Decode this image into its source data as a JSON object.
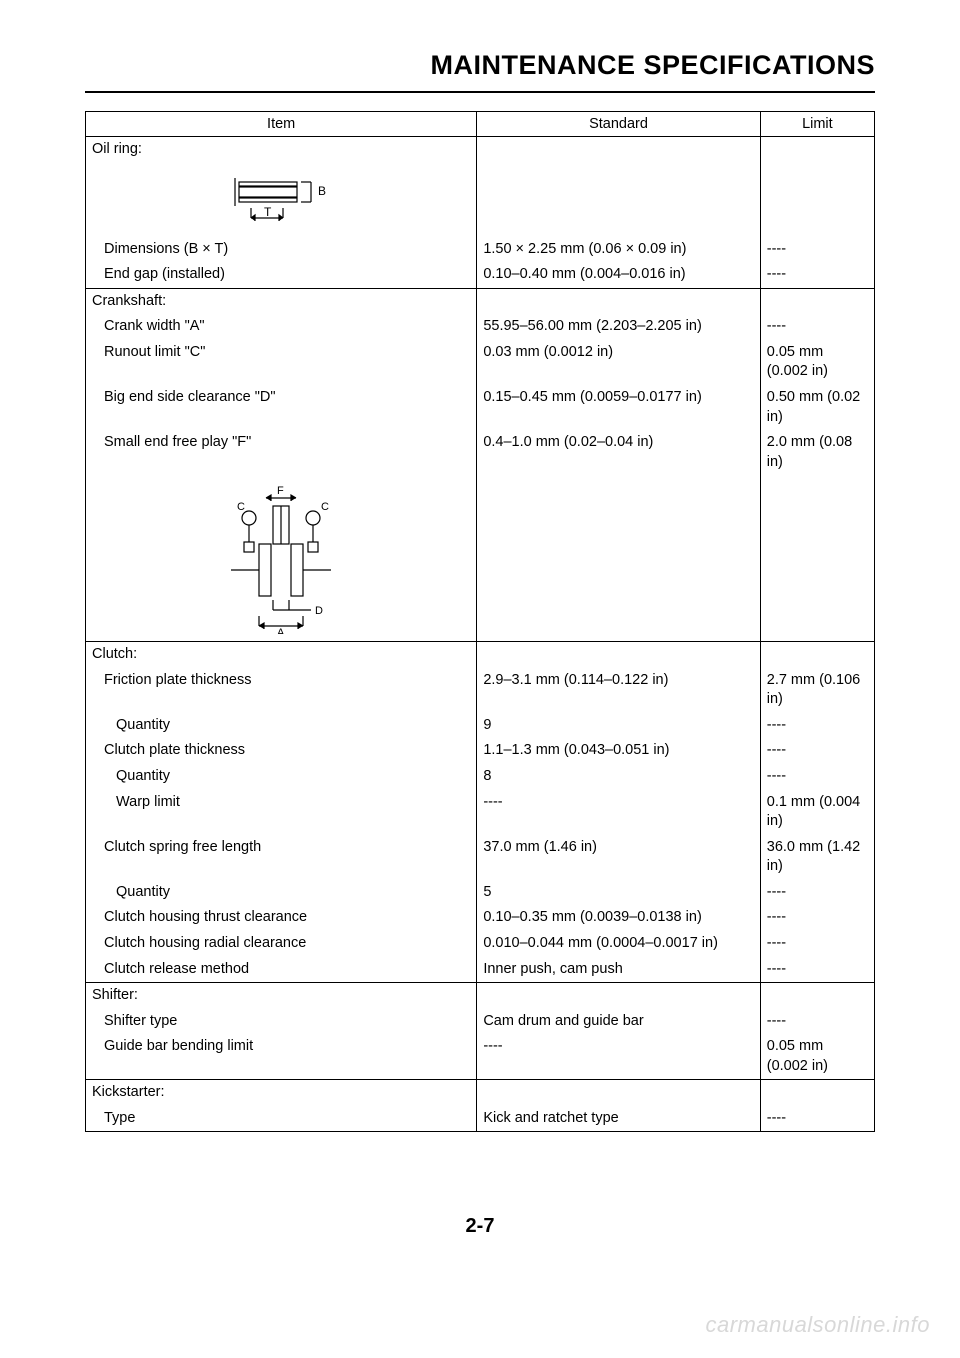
{
  "title": "MAINTENANCE SPECIFICATIONS",
  "page_number": "2-7",
  "watermark": "carmanualsonline.info",
  "headers": {
    "item": "Item",
    "standard": "Standard",
    "limit": "Limit"
  },
  "diagrams": {
    "oil_ring": {
      "labels": {
        "b": "B",
        "t": "T"
      }
    },
    "crankshaft": {
      "labels": {
        "a": "A",
        "c": "C",
        "d": "D",
        "f": "F"
      }
    }
  },
  "sections": [
    {
      "header": "Oil ring:",
      "diagram": "oil_ring",
      "rows": [
        {
          "item": "Dimensions (B × T)",
          "indent": 1,
          "standard": "1.50 × 2.25 mm (0.06 × 0.09 in)",
          "limit": "----"
        },
        {
          "item": "End gap (installed)",
          "indent": 1,
          "standard": "0.10–0.40 mm (0.004–0.016 in)",
          "limit": "----"
        }
      ]
    },
    {
      "header": "Crankshaft:",
      "rows": [
        {
          "item": "Crank width \"A\"",
          "indent": 1,
          "standard": "55.95–56.00 mm (2.203–2.205 in)",
          "limit": "----"
        },
        {
          "item": "Runout limit \"C\"",
          "indent": 1,
          "standard": "0.03 mm (0.0012 in)",
          "limit": "0.05 mm (0.002 in)"
        },
        {
          "item": "Big end side clearance \"D\"",
          "indent": 1,
          "standard": "0.15–0.45 mm (0.0059–0.0177 in)",
          "limit": "0.50 mm (0.02 in)"
        },
        {
          "item": "Small end free play \"F\"",
          "indent": 1,
          "standard": "0.4–1.0 mm (0.02–0.04 in)",
          "limit": "2.0 mm (0.08 in)"
        }
      ],
      "diagram_after": "crankshaft"
    },
    {
      "header": "Clutch:",
      "rows": [
        {
          "item": "Friction plate thickness",
          "indent": 1,
          "standard": "2.9–3.1 mm (0.114–0.122 in)",
          "limit": "2.7 mm (0.106 in)"
        },
        {
          "item": "Quantity",
          "indent": 2,
          "standard": "9",
          "limit": "----"
        },
        {
          "item": "Clutch plate thickness",
          "indent": 1,
          "standard": "1.1–1.3 mm (0.043–0.051 in)",
          "limit": "----"
        },
        {
          "item": "Quantity",
          "indent": 2,
          "standard": "8",
          "limit": "----"
        },
        {
          "item": "Warp limit",
          "indent": 2,
          "standard": "----",
          "limit": "0.1 mm (0.004 in)"
        },
        {
          "item": "Clutch spring free length",
          "indent": 1,
          "standard": "37.0 mm (1.46 in)",
          "limit": "36.0 mm (1.42 in)"
        },
        {
          "item": "Quantity",
          "indent": 2,
          "standard": "5",
          "limit": "----"
        },
        {
          "item": "Clutch housing thrust clearance",
          "indent": 1,
          "standard": "0.10–0.35 mm (0.0039–0.0138 in)",
          "limit": "----"
        },
        {
          "item": "Clutch housing radial clearance",
          "indent": 1,
          "standard": "0.010–0.044 mm (0.0004–0.0017 in)",
          "limit": "----"
        },
        {
          "item": "Clutch release method",
          "indent": 1,
          "standard": "Inner push, cam push",
          "limit": "----"
        }
      ]
    },
    {
      "header": "Shifter:",
      "rows": [
        {
          "item": "Shifter type",
          "indent": 1,
          "standard": "Cam drum and guide bar",
          "limit": "----"
        },
        {
          "item": "Guide bar bending limit",
          "indent": 1,
          "standard": "----",
          "limit": "0.05 mm (0.002 in)"
        }
      ]
    },
    {
      "header": "Kickstarter:",
      "rows": [
        {
          "item": "Type",
          "indent": 1,
          "standard": "Kick and ratchet type",
          "limit": "----"
        }
      ]
    }
  ]
}
